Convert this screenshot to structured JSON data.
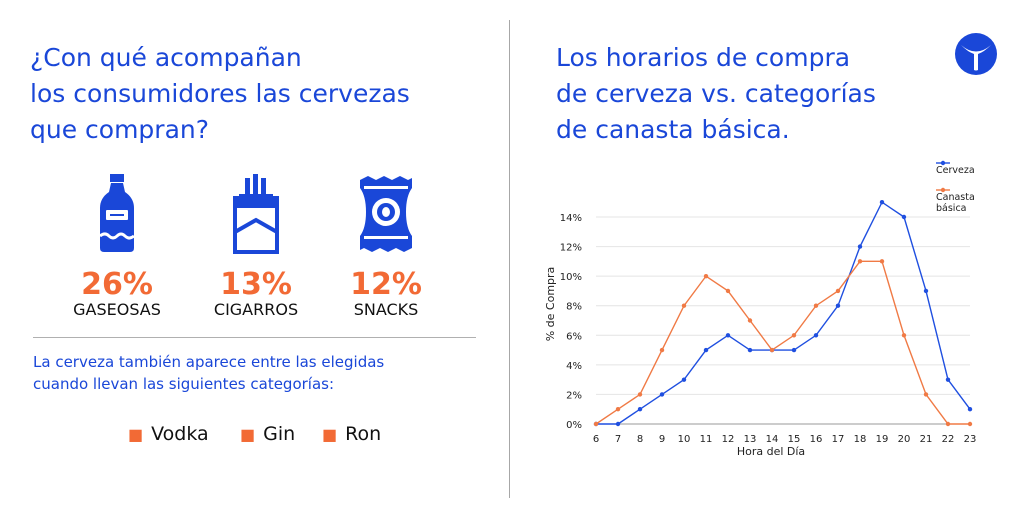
{
  "left": {
    "title_lines": [
      "¿Con qué acompañan",
      "los consumidores las cervezas",
      "que compran?"
    ],
    "stats": [
      {
        "icon": "soda-bottle-icon",
        "percent": "26%",
        "label": "GASEOSAS"
      },
      {
        "icon": "cigarette-pack-icon",
        "percent": "13%",
        "label": "CIGARROS"
      },
      {
        "icon": "snack-bag-icon",
        "percent": "12%",
        "label": "SNACKS"
      }
    ],
    "note_lines": [
      "La cerveza también aparece entre las elegidas",
      "cuando llevan las siguientes categorías:"
    ],
    "bullets": [
      "Vodka",
      "Gin",
      "Ron"
    ]
  },
  "right": {
    "title_lines": [
      "Los horarios de compra",
      "de cerveza vs. categorías",
      "de canasta básica."
    ]
  },
  "brand": {
    "icon": "brand-logo-icon"
  },
  "colors": {
    "accent_blue": "#1a47d8",
    "accent_orange": "#f26a35",
    "series_blue": "#1f4fe0",
    "series_orange": "#f07a45"
  },
  "chart_data": {
    "type": "line",
    "xlabel": "Hora del Día",
    "ylabel": "% de Compra",
    "x": [
      6,
      7,
      8,
      9,
      10,
      11,
      12,
      13,
      14,
      15,
      16,
      17,
      18,
      19,
      20,
      21,
      22,
      23
    ],
    "ylim": [
      0,
      14
    ],
    "yticks": [
      0,
      2,
      4,
      6,
      8,
      10,
      12,
      14
    ],
    "ytick_labels": [
      "0%",
      "2%",
      "4%",
      "6%",
      "8%",
      "10%",
      "12%",
      "14%"
    ],
    "grid": true,
    "legend_position": "top-right",
    "series": [
      {
        "name": "Cerveza",
        "color": "#1f4fe0",
        "values": [
          0,
          0,
          1,
          2,
          3,
          5,
          6,
          5,
          5,
          5,
          6,
          8,
          12,
          15,
          14,
          9,
          3,
          1
        ]
      },
      {
        "name": "Canasta básica",
        "legend_lines": [
          "Canasta",
          "básica"
        ],
        "color": "#f07a45",
        "values": [
          0,
          1,
          2,
          5,
          8,
          10,
          9,
          7,
          5,
          6,
          8,
          9,
          11,
          11,
          6,
          2,
          0,
          0
        ]
      }
    ]
  }
}
